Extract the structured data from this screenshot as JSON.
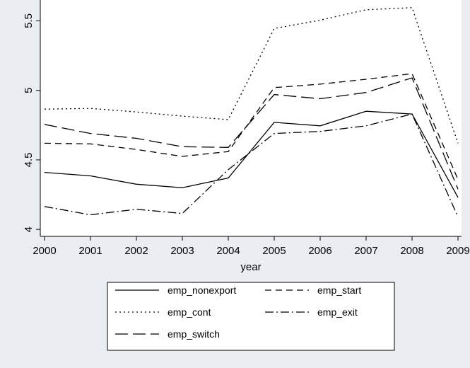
{
  "chart_data": {
    "type": "line",
    "title": "",
    "xlabel": "year",
    "ylabel": "",
    "x": [
      2000,
      2001,
      2002,
      2003,
      2004,
      2005,
      2006,
      2007,
      2008,
      2009
    ],
    "xlim": [
      2000,
      2009
    ],
    "ylim": [
      3.95,
      5.65
    ],
    "yticks": [
      4,
      4.5,
      5,
      5.5
    ],
    "ytick_labels": [
      "4",
      "4.5",
      "5",
      "5.5"
    ],
    "grid": false,
    "legend_position": "bottom",
    "series": [
      {
        "name": "emp_nonexport",
        "dash": "solid",
        "values": [
          4.41,
          4.385,
          4.325,
          4.3,
          4.37,
          4.77,
          4.745,
          4.85,
          4.83,
          4.23
        ]
      },
      {
        "name": "emp_start",
        "dash": "dash",
        "values": [
          4.62,
          4.615,
          4.575,
          4.525,
          4.56,
          5.02,
          5.045,
          5.08,
          5.12,
          4.36
        ]
      },
      {
        "name": "emp_cont",
        "dash": "dot",
        "values": [
          4.865,
          4.87,
          4.845,
          4.815,
          4.79,
          5.445,
          5.505,
          5.58,
          5.595,
          4.62
        ]
      },
      {
        "name": "emp_exit",
        "dash": "dashdot",
        "values": [
          4.165,
          4.105,
          4.145,
          4.115,
          4.43,
          4.69,
          4.705,
          4.745,
          4.83,
          4.09
        ]
      },
      {
        "name": "emp_switch",
        "dash": "longdash",
        "values": [
          4.755,
          4.69,
          4.655,
          4.595,
          4.59,
          4.97,
          4.94,
          4.985,
          5.09,
          4.29
        ]
      }
    ]
  }
}
